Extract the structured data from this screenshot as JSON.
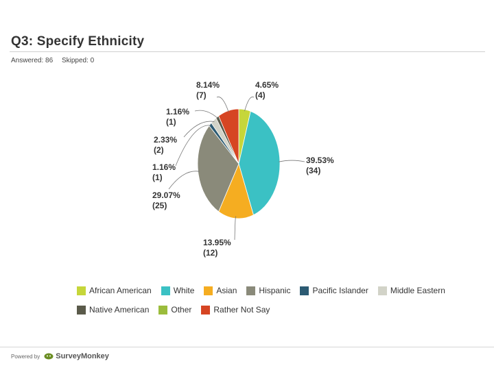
{
  "question": {
    "title": "Q3: Specify Ethnicity",
    "answered": "Answered: 86",
    "skipped": "Skipped: 0"
  },
  "footer": {
    "powered_by": "Powered by",
    "brand": "SurveyMonkey"
  },
  "colors": {
    "african_american": "#c6d63a",
    "white": "#3bc1c4",
    "asian": "#f5ad21",
    "hispanic": "#8a8a7a",
    "pacific_islander": "#2c5b73",
    "middle_eastern": "#d2d3c8",
    "native_american": "#5a5a4a",
    "other": "#9bbc3c",
    "rather_not_say": "#d64523"
  },
  "chart_data": {
    "type": "pie",
    "title": "Q3: Specify Ethnicity",
    "slices": [
      {
        "name": "African American",
        "value": 4.65,
        "count": 4,
        "color": "#c6d63a",
        "label_pct": "4.65%",
        "label_count": "(4)"
      },
      {
        "name": "White",
        "value": 39.53,
        "count": 34,
        "color": "#3bc1c4",
        "label_pct": "39.53%",
        "label_count": "(34)"
      },
      {
        "name": "Asian",
        "value": 13.95,
        "count": 12,
        "color": "#f5ad21",
        "label_pct": "13.95%",
        "label_count": "(12)"
      },
      {
        "name": "Hispanic",
        "value": 29.07,
        "count": 25,
        "color": "#8a8a7a",
        "label_pct": "29.07%",
        "label_count": "(25)"
      },
      {
        "name": "Pacific Islander",
        "value": 1.16,
        "count": 1,
        "color": "#2c5b73",
        "label_pct": "1.16%",
        "label_count": "(1)"
      },
      {
        "name": "Middle Eastern",
        "value": 2.33,
        "count": 2,
        "color": "#d2d3c8",
        "label_pct": "2.33%",
        "label_count": "(2)"
      },
      {
        "name": "Native American",
        "value": 1.16,
        "count": 1,
        "color": "#5a5a4a",
        "label_pct": "1.16%",
        "label_count": "(1)"
      },
      {
        "name": "Other",
        "value": 0,
        "count": 0,
        "color": "#9bbc3c",
        "label_pct": "",
        "label_count": ""
      },
      {
        "name": "Rather Not Say",
        "value": 8.14,
        "count": 7,
        "color": "#d64523",
        "label_pct": "8.14%",
        "label_count": "(7)"
      }
    ],
    "legend": {
      "placement": "bottom",
      "rows": [
        [
          "African American",
          "White",
          "Asian",
          "Hispanic",
          "Pacific Islander",
          "Middle Eastern"
        ],
        [
          "Native American",
          "Other",
          "Rather Not Say"
        ]
      ]
    }
  }
}
